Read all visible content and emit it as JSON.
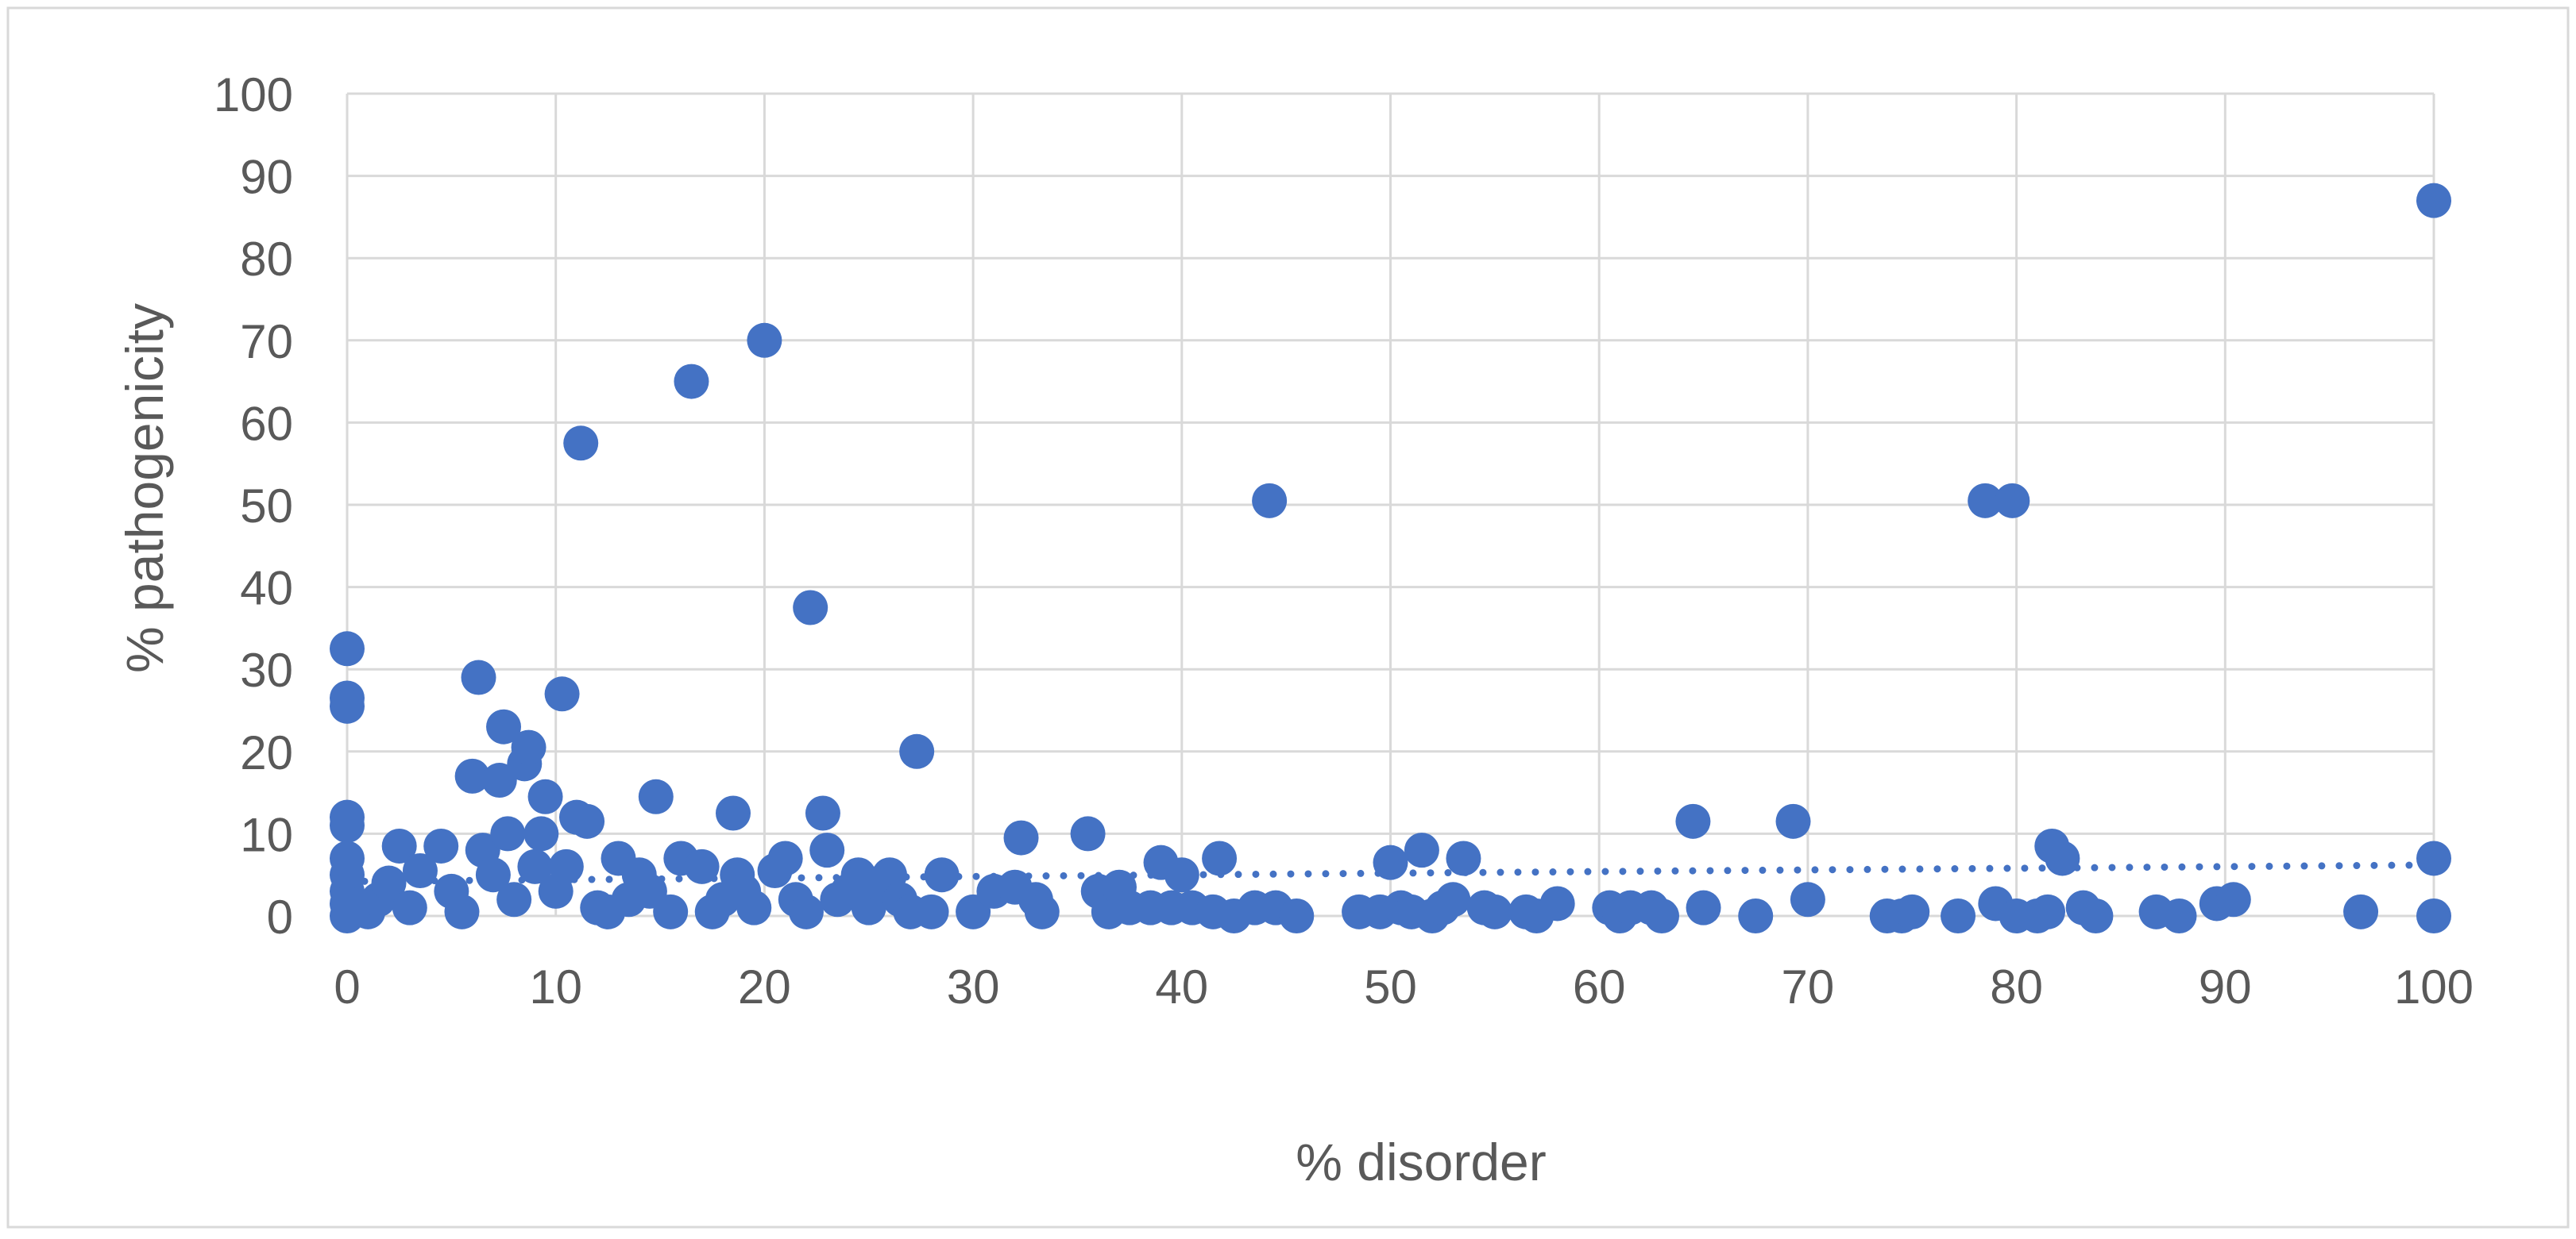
{
  "chart_data": {
    "type": "scatter",
    "title": "",
    "xlabel": "% disorder",
    "ylabel": "% pathogenicity",
    "xlim": [
      0,
      100
    ],
    "ylim": [
      0,
      100
    ],
    "x_ticks": [
      0,
      10,
      20,
      30,
      40,
      50,
      60,
      70,
      80,
      90,
      100
    ],
    "y_ticks": [
      0,
      10,
      20,
      30,
      40,
      50,
      60,
      70,
      80,
      90,
      100
    ],
    "grid": true,
    "legend": "none",
    "colors": {
      "points": "#4472C4",
      "trendline": "#4472C4",
      "grid": "#D9D9D9",
      "text": "#595959",
      "border": "#D9D9D9"
    },
    "trendline": {
      "type": "linear",
      "style": "dotted",
      "x": [
        0,
        100
      ],
      "y": [
        4.2,
        6.2
      ]
    },
    "points": [
      {
        "x": 0,
        "y": 32.5
      },
      {
        "x": 0,
        "y": 26.5
      },
      {
        "x": 0,
        "y": 25.5
      },
      {
        "x": 0,
        "y": 12
      },
      {
        "x": 0,
        "y": 11
      },
      {
        "x": 0,
        "y": 7
      },
      {
        "x": 0,
        "y": 5
      },
      {
        "x": 0,
        "y": 3
      },
      {
        "x": 0,
        "y": 1.5
      },
      {
        "x": 0,
        "y": 0
      },
      {
        "x": 1,
        "y": 0.5
      },
      {
        "x": 1.5,
        "y": 2
      },
      {
        "x": 2,
        "y": 4
      },
      {
        "x": 2.5,
        "y": 8.5
      },
      {
        "x": 3,
        "y": 1
      },
      {
        "x": 3.5,
        "y": 5.5
      },
      {
        "x": 4.5,
        "y": 8.5
      },
      {
        "x": 5,
        "y": 3
      },
      {
        "x": 5.5,
        "y": 0.5
      },
      {
        "x": 6,
        "y": 17
      },
      {
        "x": 6.3,
        "y": 29
      },
      {
        "x": 6.5,
        "y": 8
      },
      {
        "x": 7,
        "y": 5
      },
      {
        "x": 7.3,
        "y": 16.5
      },
      {
        "x": 7.5,
        "y": 23
      },
      {
        "x": 7.7,
        "y": 10
      },
      {
        "x": 8,
        "y": 2
      },
      {
        "x": 8.5,
        "y": 18.5
      },
      {
        "x": 8.7,
        "y": 20.5
      },
      {
        "x": 9,
        "y": 6
      },
      {
        "x": 9.3,
        "y": 10
      },
      {
        "x": 9.5,
        "y": 14.5
      },
      {
        "x": 10,
        "y": 3
      },
      {
        "x": 10.3,
        "y": 27
      },
      {
        "x": 10.5,
        "y": 6
      },
      {
        "x": 11,
        "y": 12
      },
      {
        "x": 11.2,
        "y": 57.5
      },
      {
        "x": 11.5,
        "y": 11.5
      },
      {
        "x": 12,
        "y": 1
      },
      {
        "x": 12.5,
        "y": 0.5
      },
      {
        "x": 13,
        "y": 7
      },
      {
        "x": 13.5,
        "y": 2
      },
      {
        "x": 14,
        "y": 5
      },
      {
        "x": 14.5,
        "y": 3
      },
      {
        "x": 14.8,
        "y": 14.5
      },
      {
        "x": 15.5,
        "y": 0.5
      },
      {
        "x": 16,
        "y": 7
      },
      {
        "x": 16.5,
        "y": 65
      },
      {
        "x": 17,
        "y": 6
      },
      {
        "x": 17.5,
        "y": 0.5
      },
      {
        "x": 18,
        "y": 2
      },
      {
        "x": 18.5,
        "y": 12.5
      },
      {
        "x": 18.7,
        "y": 5
      },
      {
        "x": 19,
        "y": 3
      },
      {
        "x": 19.5,
        "y": 1
      },
      {
        "x": 20,
        "y": 70
      },
      {
        "x": 20.5,
        "y": 5.5
      },
      {
        "x": 21,
        "y": 7
      },
      {
        "x": 21.5,
        "y": 2
      },
      {
        "x": 22,
        "y": 0.5
      },
      {
        "x": 22.2,
        "y": 37.5
      },
      {
        "x": 22.8,
        "y": 12.5
      },
      {
        "x": 23,
        "y": 8
      },
      {
        "x": 23.5,
        "y": 2
      },
      {
        "x": 24,
        "y": 3
      },
      {
        "x": 24.5,
        "y": 5
      },
      {
        "x": 25,
        "y": 1
      },
      {
        "x": 25.5,
        "y": 4
      },
      {
        "x": 26,
        "y": 5
      },
      {
        "x": 26.5,
        "y": 2
      },
      {
        "x": 27,
        "y": 0.5
      },
      {
        "x": 27.3,
        "y": 20
      },
      {
        "x": 28,
        "y": 0.5
      },
      {
        "x": 28.5,
        "y": 5
      },
      {
        "x": 30,
        "y": 0.5
      },
      {
        "x": 31,
        "y": 3
      },
      {
        "x": 32,
        "y": 3.5
      },
      {
        "x": 32.3,
        "y": 9.5
      },
      {
        "x": 33,
        "y": 2
      },
      {
        "x": 33.3,
        "y": 0.5
      },
      {
        "x": 35.5,
        "y": 10
      },
      {
        "x": 36,
        "y": 3
      },
      {
        "x": 36.5,
        "y": 0.5
      },
      {
        "x": 37,
        "y": 3.5
      },
      {
        "x": 37.5,
        "y": 1
      },
      {
        "x": 38.5,
        "y": 1
      },
      {
        "x": 39,
        "y": 6.5
      },
      {
        "x": 39.5,
        "y": 1
      },
      {
        "x": 40,
        "y": 5
      },
      {
        "x": 40.5,
        "y": 1
      },
      {
        "x": 41.5,
        "y": 0.5
      },
      {
        "x": 41.8,
        "y": 7
      },
      {
        "x": 42.5,
        "y": 0
      },
      {
        "x": 43.5,
        "y": 1
      },
      {
        "x": 44.2,
        "y": 50.5
      },
      {
        "x": 44.5,
        "y": 1
      },
      {
        "x": 45.5,
        "y": 0
      },
      {
        "x": 48.5,
        "y": 0.5
      },
      {
        "x": 49.5,
        "y": 0.5
      },
      {
        "x": 50,
        "y": 6.5
      },
      {
        "x": 50.5,
        "y": 1
      },
      {
        "x": 51,
        "y": 0.5
      },
      {
        "x": 51.5,
        "y": 8
      },
      {
        "x": 52,
        "y": 0
      },
      {
        "x": 52.5,
        "y": 1
      },
      {
        "x": 53,
        "y": 2
      },
      {
        "x": 53.5,
        "y": 7
      },
      {
        "x": 54.5,
        "y": 1
      },
      {
        "x": 55,
        "y": 0.5
      },
      {
        "x": 56.5,
        "y": 0.5
      },
      {
        "x": 57,
        "y": 0
      },
      {
        "x": 58,
        "y": 1.5
      },
      {
        "x": 60.5,
        "y": 1
      },
      {
        "x": 61,
        "y": 0
      },
      {
        "x": 61.5,
        "y": 1
      },
      {
        "x": 62.5,
        "y": 1
      },
      {
        "x": 63,
        "y": 0
      },
      {
        "x": 64.5,
        "y": 11.5
      },
      {
        "x": 65,
        "y": 1
      },
      {
        "x": 67.5,
        "y": 0
      },
      {
        "x": 69.3,
        "y": 11.5
      },
      {
        "x": 70,
        "y": 2
      },
      {
        "x": 73.8,
        "y": 0
      },
      {
        "x": 74.5,
        "y": 0
      },
      {
        "x": 75,
        "y": 0.5
      },
      {
        "x": 77.2,
        "y": 0
      },
      {
        "x": 78.5,
        "y": 50.5
      },
      {
        "x": 79,
        "y": 1.5
      },
      {
        "x": 79.8,
        "y": 50.5
      },
      {
        "x": 80,
        "y": 0
      },
      {
        "x": 81,
        "y": 0
      },
      {
        "x": 81.5,
        "y": 0.5
      },
      {
        "x": 81.7,
        "y": 8.5
      },
      {
        "x": 82.2,
        "y": 7
      },
      {
        "x": 83.2,
        "y": 1
      },
      {
        "x": 83.8,
        "y": 0
      },
      {
        "x": 86.7,
        "y": 0.5
      },
      {
        "x": 87.8,
        "y": 0
      },
      {
        "x": 89.6,
        "y": 1.5
      },
      {
        "x": 90.4,
        "y": 2
      },
      {
        "x": 96.5,
        "y": 0.5
      },
      {
        "x": 100,
        "y": 87
      },
      {
        "x": 100,
        "y": 7
      },
      {
        "x": 100,
        "y": 0
      }
    ]
  }
}
